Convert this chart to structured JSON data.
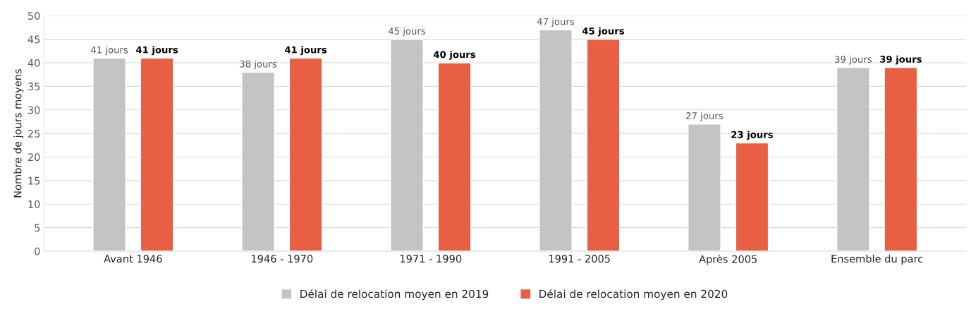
{
  "chart_data": {
    "type": "bar",
    "ylabel": "Nombre de jours moyens",
    "categories": [
      "Avant 1946",
      "1946 - 1970",
      "1971 - 1990",
      "1991 - 2005",
      "Après 2005",
      "Ensemble du parc"
    ],
    "series": [
      {
        "name": "Délai de relocation moyen en 2019",
        "color": "#c4c4c4",
        "values": [
          41,
          38,
          45,
          47,
          27,
          39
        ],
        "value_labels": [
          "41 jours",
          "38 jours",
          "45 jours",
          "47 jours",
          "27 jours",
          "39 jours"
        ]
      },
      {
        "name": "Délai de relocation moyen en 2020",
        "color": "#e95f43",
        "values": [
          41,
          41,
          40,
          45,
          23,
          39
        ],
        "value_labels": [
          "41 jours",
          "41 jours",
          "40 jours",
          "45 jours",
          "23 jours",
          "39 jours"
        ]
      }
    ],
    "ylim": [
      0,
      50
    ],
    "yticks": [
      0,
      5,
      10,
      15,
      20,
      25,
      30,
      35,
      40,
      45,
      50
    ],
    "grid": "y",
    "legend": "bottom"
  }
}
